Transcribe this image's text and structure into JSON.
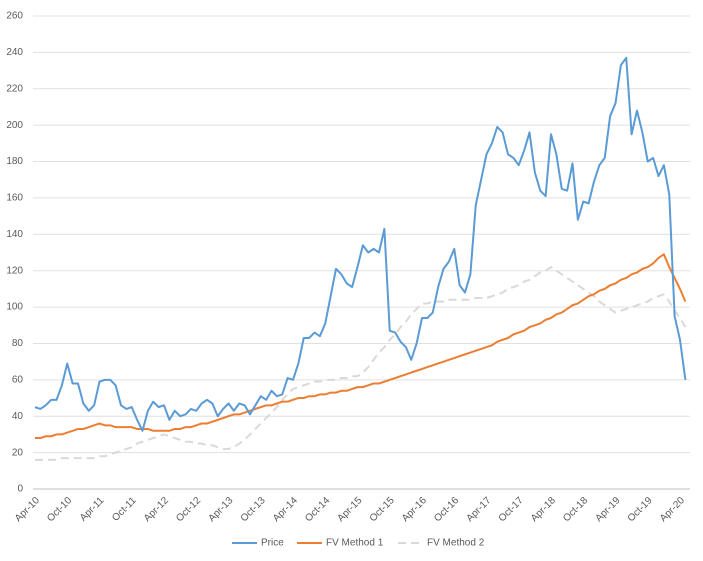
{
  "chart_data": {
    "type": "line",
    "categories": [
      "Apr-10",
      null,
      null,
      null,
      null,
      null,
      "Oct-10",
      null,
      null,
      null,
      null,
      null,
      "Apr-11",
      null,
      null,
      null,
      null,
      null,
      "Oct-11",
      null,
      null,
      null,
      null,
      null,
      "Apr-12",
      null,
      null,
      null,
      null,
      null,
      "Oct-12",
      null,
      null,
      null,
      null,
      null,
      "Apr-13",
      null,
      null,
      null,
      null,
      null,
      "Oct-13",
      null,
      null,
      null,
      null,
      null,
      "Apr-14",
      null,
      null,
      null,
      null,
      null,
      "Oct-14",
      null,
      null,
      null,
      null,
      null,
      "Apr-15",
      null,
      null,
      null,
      null,
      null,
      "Oct-15",
      null,
      null,
      null,
      null,
      null,
      "Apr-16",
      null,
      null,
      null,
      null,
      null,
      "Oct-16",
      null,
      null,
      null,
      null,
      null,
      "Apr-17",
      null,
      null,
      null,
      null,
      null,
      "Oct-17",
      null,
      null,
      null,
      null,
      null,
      "Apr-18",
      null,
      null,
      null,
      null,
      null,
      "Oct-18",
      null,
      null,
      null,
      null,
      null,
      "Apr-19",
      null,
      null,
      null,
      null,
      null,
      "Oct-19",
      null,
      null,
      null,
      null,
      null,
      "Apr-20",
      null
    ],
    "series": [
      {
        "name": "Price",
        "color": "#5b9bd5",
        "dash": false,
        "values": [
          45,
          44,
          46,
          49,
          49,
          57,
          69,
          58,
          58,
          47,
          43,
          46,
          59,
          60,
          60,
          57,
          46,
          44,
          45,
          38,
          32,
          43,
          48,
          45,
          46,
          38,
          43,
          40,
          41,
          44,
          43,
          47,
          49,
          47,
          40,
          44,
          47,
          43,
          47,
          46,
          41,
          46,
          51,
          49,
          54,
          51,
          52,
          61,
          60,
          69,
          83,
          83,
          86,
          84,
          91,
          106,
          121,
          118,
          113,
          111,
          122,
          134,
          130,
          132,
          130,
          143,
          87,
          86,
          81,
          78,
          71,
          80,
          94,
          94,
          97,
          111,
          121,
          125,
          132,
          112,
          108,
          118,
          156,
          170,
          184,
          190,
          199,
          196,
          184,
          182,
          178,
          186,
          196,
          174,
          164,
          161,
          195,
          184,
          165,
          164,
          179,
          148,
          158,
          157,
          169,
          178,
          182,
          205,
          212,
          233,
          237,
          195,
          208,
          196,
          180,
          182,
          172,
          178,
          162,
          95,
          82,
          60
        ]
      },
      {
        "name": "FV Method 1",
        "color": "#ed7d31",
        "dash": false,
        "values": [
          28,
          28,
          29,
          29,
          30,
          30,
          31,
          32,
          33,
          33,
          34,
          35,
          36,
          35,
          35,
          34,
          34,
          34,
          34,
          33,
          33,
          33,
          32,
          32,
          32,
          32,
          33,
          33,
          34,
          34,
          35,
          36,
          36,
          37,
          38,
          39,
          40,
          41,
          41,
          42,
          43,
          44,
          45,
          46,
          46,
          47,
          48,
          48,
          49,
          50,
          50,
          51,
          51,
          52,
          52,
          53,
          53,
          54,
          54,
          55,
          56,
          56,
          57,
          58,
          58,
          59,
          60,
          61,
          62,
          63,
          64,
          65,
          66,
          67,
          68,
          69,
          70,
          71,
          72,
          73,
          74,
          75,
          76,
          77,
          78,
          79,
          81,
          82,
          83,
          85,
          86,
          87,
          89,
          90,
          91,
          93,
          94,
          96,
          97,
          99,
          101,
          102,
          104,
          106,
          107,
          109,
          110,
          112,
          113,
          115,
          116,
          118,
          119,
          121,
          122,
          124,
          127,
          129,
          122,
          116,
          110,
          103
        ]
      },
      {
        "name": "FV Method 2",
        "color": "#d9d9d9",
        "dash": true,
        "values": [
          16,
          16,
          16,
          16,
          16,
          17,
          17,
          17,
          17,
          17,
          17,
          17,
          18,
          18,
          19,
          20,
          21,
          22,
          23,
          25,
          26,
          27,
          28,
          29,
          30,
          29,
          28,
          27,
          26,
          26,
          25,
          25,
          24,
          24,
          23,
          22,
          22,
          23,
          25,
          27,
          30,
          33,
          36,
          39,
          42,
          45,
          49,
          52,
          55,
          56,
          57,
          58,
          59,
          59,
          60,
          60,
          60,
          61,
          61,
          62,
          62,
          64,
          67,
          71,
          75,
          78,
          82,
          85,
          89,
          92,
          96,
          99,
          102,
          102,
          103,
          103,
          103,
          104,
          104,
          104,
          104,
          104,
          105,
          105,
          105,
          106,
          107,
          108,
          110,
          111,
          112,
          114,
          115,
          117,
          119,
          120,
          122,
          120,
          118,
          116,
          114,
          112,
          110,
          108,
          106,
          103,
          101,
          99,
          97,
          98,
          99,
          100,
          101,
          102,
          103,
          105,
          106,
          107,
          103,
          98,
          94,
          89
        ]
      }
    ],
    "ylim": [
      0,
      260
    ],
    "yticks": [
      0,
      20,
      40,
      60,
      80,
      100,
      120,
      140,
      160,
      180,
      200,
      220,
      240,
      260
    ],
    "grid": true,
    "legend": "bottom"
  }
}
